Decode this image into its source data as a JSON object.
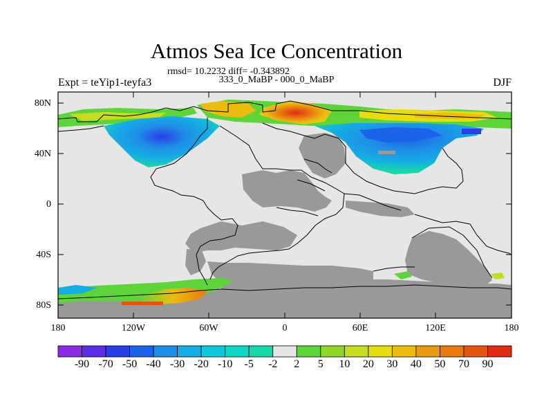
{
  "title": "Atmos Sea Ice Concentration",
  "stats": "rmsd= 10.2232 diff= -0.343892",
  "subtitle": "333_0_MaBP - 000_0_MaBP",
  "experiment": "Expt = teYip1-teyfa3",
  "season": "DJF",
  "map": {
    "lat_ticks": [
      "80N",
      "40N",
      "0",
      "40S",
      "80S"
    ],
    "lon_ticks": [
      "180",
      "120W",
      "60W",
      "0",
      "60E",
      "120E",
      "180"
    ],
    "ocean_color": "#e6e6e6",
    "land_color": "#999999"
  },
  "colorbar": {
    "labels": [
      "-90",
      "-70",
      "-50",
      "-40",
      "-30",
      "-20",
      "-10",
      "-5",
      "-2",
      "2",
      "5",
      "10",
      "20",
      "30",
      "40",
      "50",
      "70",
      "90"
    ],
    "colors": [
      "#8a2be2",
      "#5b2ee6",
      "#2a3ee8",
      "#1b63e8",
      "#1f8ee6",
      "#15aee4",
      "#0fc8dc",
      "#0dd7c4",
      "#17d8a8",
      "#e6e6e6",
      "#5ed43a",
      "#8fd82a",
      "#c6dc20",
      "#e6dc10",
      "#ecbc10",
      "#e99a10",
      "#e87a10",
      "#e55512",
      "#e02c14"
    ]
  }
}
